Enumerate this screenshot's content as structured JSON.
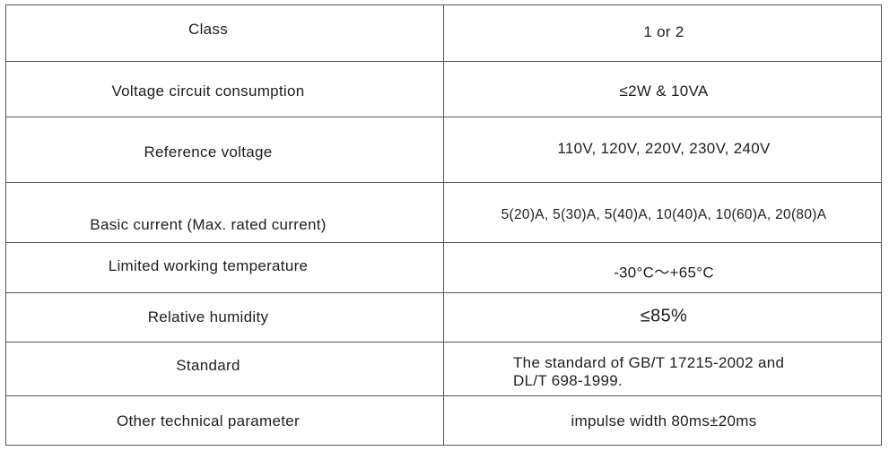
{
  "rows": [
    {
      "param": "Class",
      "value": "1 or 2"
    },
    {
      "param": "Voltage circuit consumption",
      "value": "≤2W & 10VA"
    },
    {
      "param": "Reference voltage",
      "value": "110V, 120V, 220V, 230V, 240V"
    },
    {
      "param": "Basic current (Max. rated current)",
      "value": "5(20)A, 5(30)A, 5(40)A, 10(40)A, 10(60)A, 20(80)A"
    },
    {
      "param": "Limited working temperature",
      "value": "-30°C～+65°C"
    },
    {
      "param": "Relative humidity",
      "value": "≤85%"
    },
    {
      "param": "Standard",
      "value_line1": "The standard of GB/T 17215-2002 and",
      "value_line2": "DL/T 698-1999."
    },
    {
      "param": "Other technical parameter",
      "value": "impulse width 80ms±20ms"
    }
  ]
}
